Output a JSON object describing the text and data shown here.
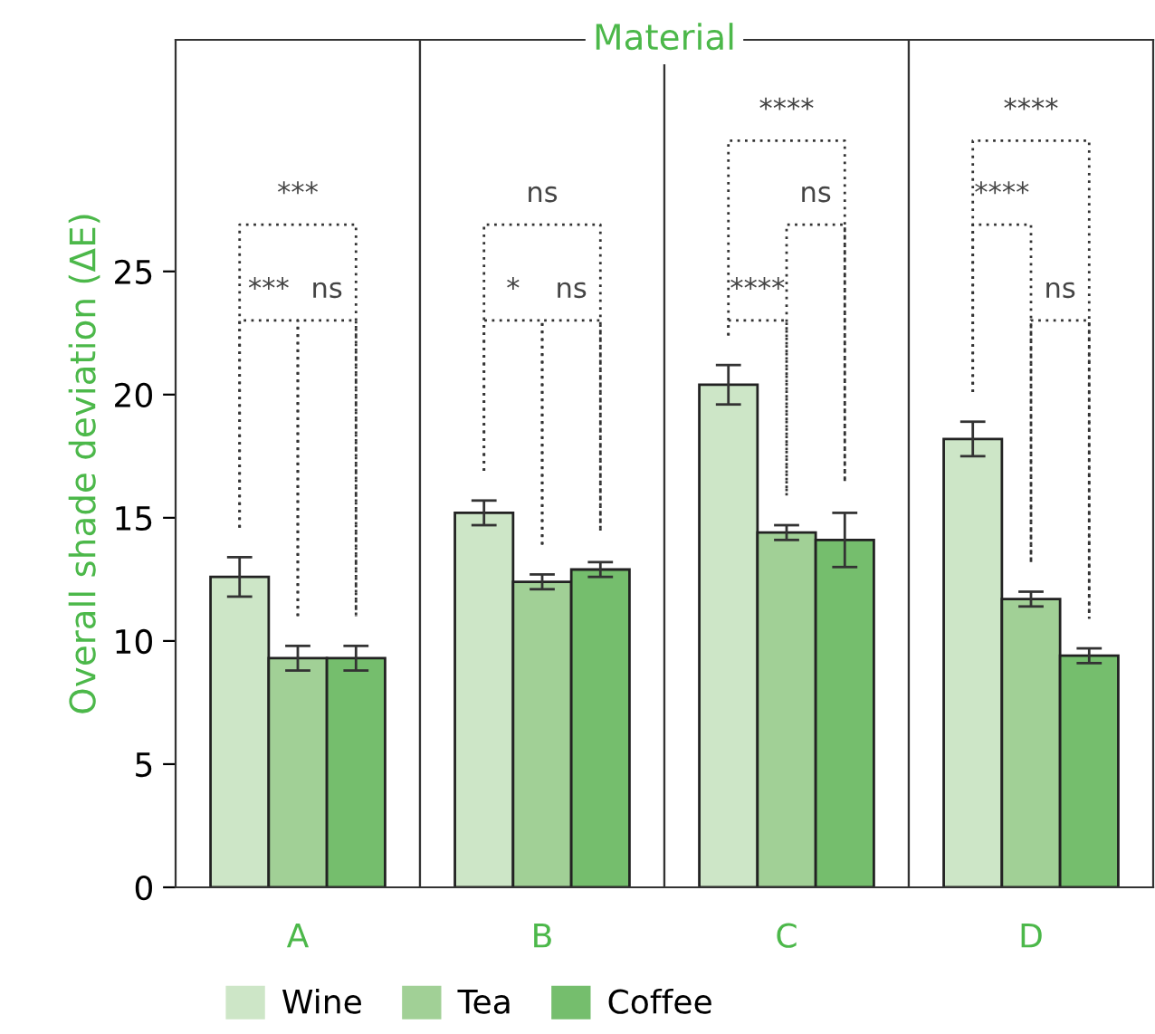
{
  "chart_data": {
    "type": "bar",
    "xlabel": "Material",
    "ylabel": "Overall shade deviation (ΔE)",
    "categories": [
      "A",
      "B",
      "C",
      "D"
    ],
    "series": [
      {
        "name": "Wine",
        "color": "#cde6c7",
        "values": [
          12.6,
          15.2,
          20.4,
          18.2
        ],
        "errors": [
          0.8,
          0.5,
          0.8,
          0.7
        ]
      },
      {
        "name": "Tea",
        "color": "#a1d096",
        "values": [
          9.3,
          12.4,
          14.4,
          11.7
        ],
        "errors": [
          0.5,
          0.3,
          0.3,
          0.3
        ]
      },
      {
        "name": "Coffee",
        "color": "#75be6d",
        "values": [
          9.3,
          12.9,
          14.1,
          9.4
        ],
        "errors": [
          0.5,
          0.3,
          1.1,
          0.3
        ]
      }
    ],
    "ylim": [
      0,
      34.4
    ],
    "yticks": [
      0,
      5,
      10,
      15,
      20,
      25
    ],
    "grid": false,
    "legend": "bottom",
    "annotations": [
      "***",
      "***",
      "ns",
      "ns",
      "*",
      "ns",
      "****",
      "ns",
      "****",
      "****",
      "****",
      "ns"
    ]
  }
}
